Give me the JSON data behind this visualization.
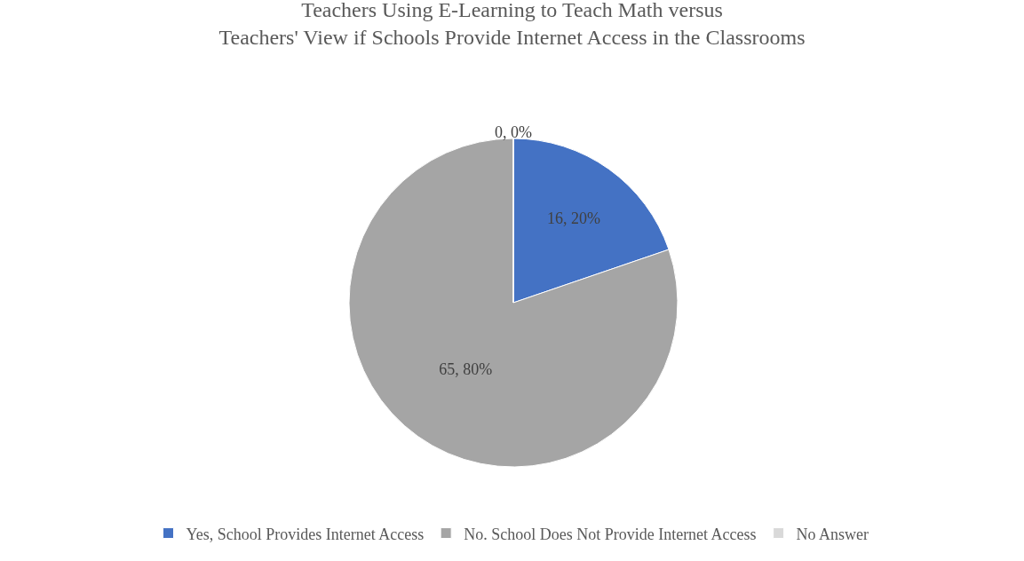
{
  "chart_data": {
    "type": "pie",
    "title": "Teachers Using E-Learning to Teach Math versus\nTeachers' View if Schools Provide Internet Access in the Classrooms",
    "categories": [
      "Yes, School Provides Internet Access",
      "No. School Does Not Provide Internet Access",
      "No Answer"
    ],
    "values": [
      16,
      65,
      0
    ],
    "value_labels": [
      "16, 20%",
      "65, 80%",
      "0, 0%"
    ],
    "colors": [
      "#4472c4",
      "#a5a5a5",
      "#d9d9d9"
    ],
    "legend": "bottom"
  }
}
